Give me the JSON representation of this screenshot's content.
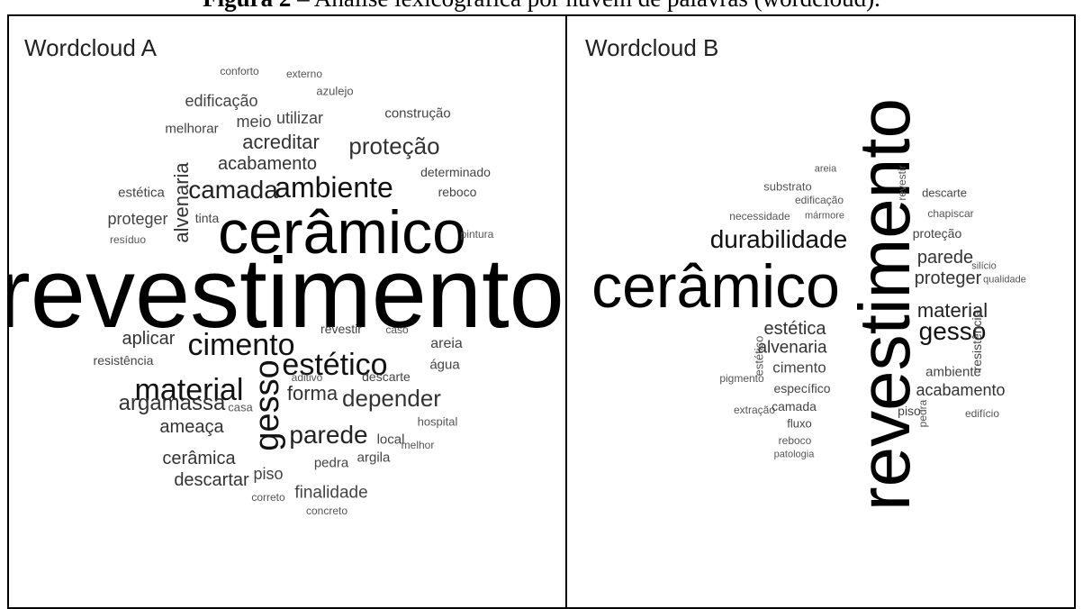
{
  "caption": {
    "prefix": "Figura 2",
    "rest": " – Análise lexicográfica por nuvem de palavras (wordcloud)."
  },
  "panels": [
    {
      "title": "Wordcloud A",
      "words": [
        "revestimento",
        "cerâmico",
        "cimento",
        "estético",
        "material",
        "gesso",
        "ambiente",
        "parede",
        "depender",
        "camada",
        "proteção",
        "argamassa",
        "acreditar",
        "acabamento",
        "forma",
        "alvenaria",
        "aplicar",
        "edificação",
        "meio",
        "utilizar",
        "ameaça",
        "cerâmica",
        "descartar",
        "piso",
        "finalidade",
        "proteger",
        "conforto",
        "externo",
        "azulejo",
        "construção",
        "melhorar",
        "estética",
        "tinta",
        "resíduo",
        "determinado",
        "reboco",
        "pintura",
        "revestir",
        "caso",
        "areia",
        "água",
        "aditivo",
        "descarte",
        "casa",
        "resistência",
        "local",
        "melhor",
        "hospital",
        "pedra",
        "argila",
        "correto",
        "concreto"
      ]
    },
    {
      "title": "Wordcloud B",
      "words": [
        "revestimento",
        "cerâmico",
        "durabilidade",
        "gesso",
        "material",
        "proteger",
        "parede",
        "estética",
        "alvenaria",
        "cimento",
        "acabamento",
        "ambiente",
        "proteção",
        "areia",
        "substrato",
        "edificação",
        "revestir",
        "descarte",
        "necessidade",
        "mármore",
        "chapiscar",
        "silício",
        "qualidade",
        "resistência",
        "estético",
        "pigmento",
        "específico",
        "extração",
        "camada",
        "fluxo",
        "reboco",
        "patologia",
        "piso",
        "edifício",
        "pedra"
      ]
    }
  ]
}
